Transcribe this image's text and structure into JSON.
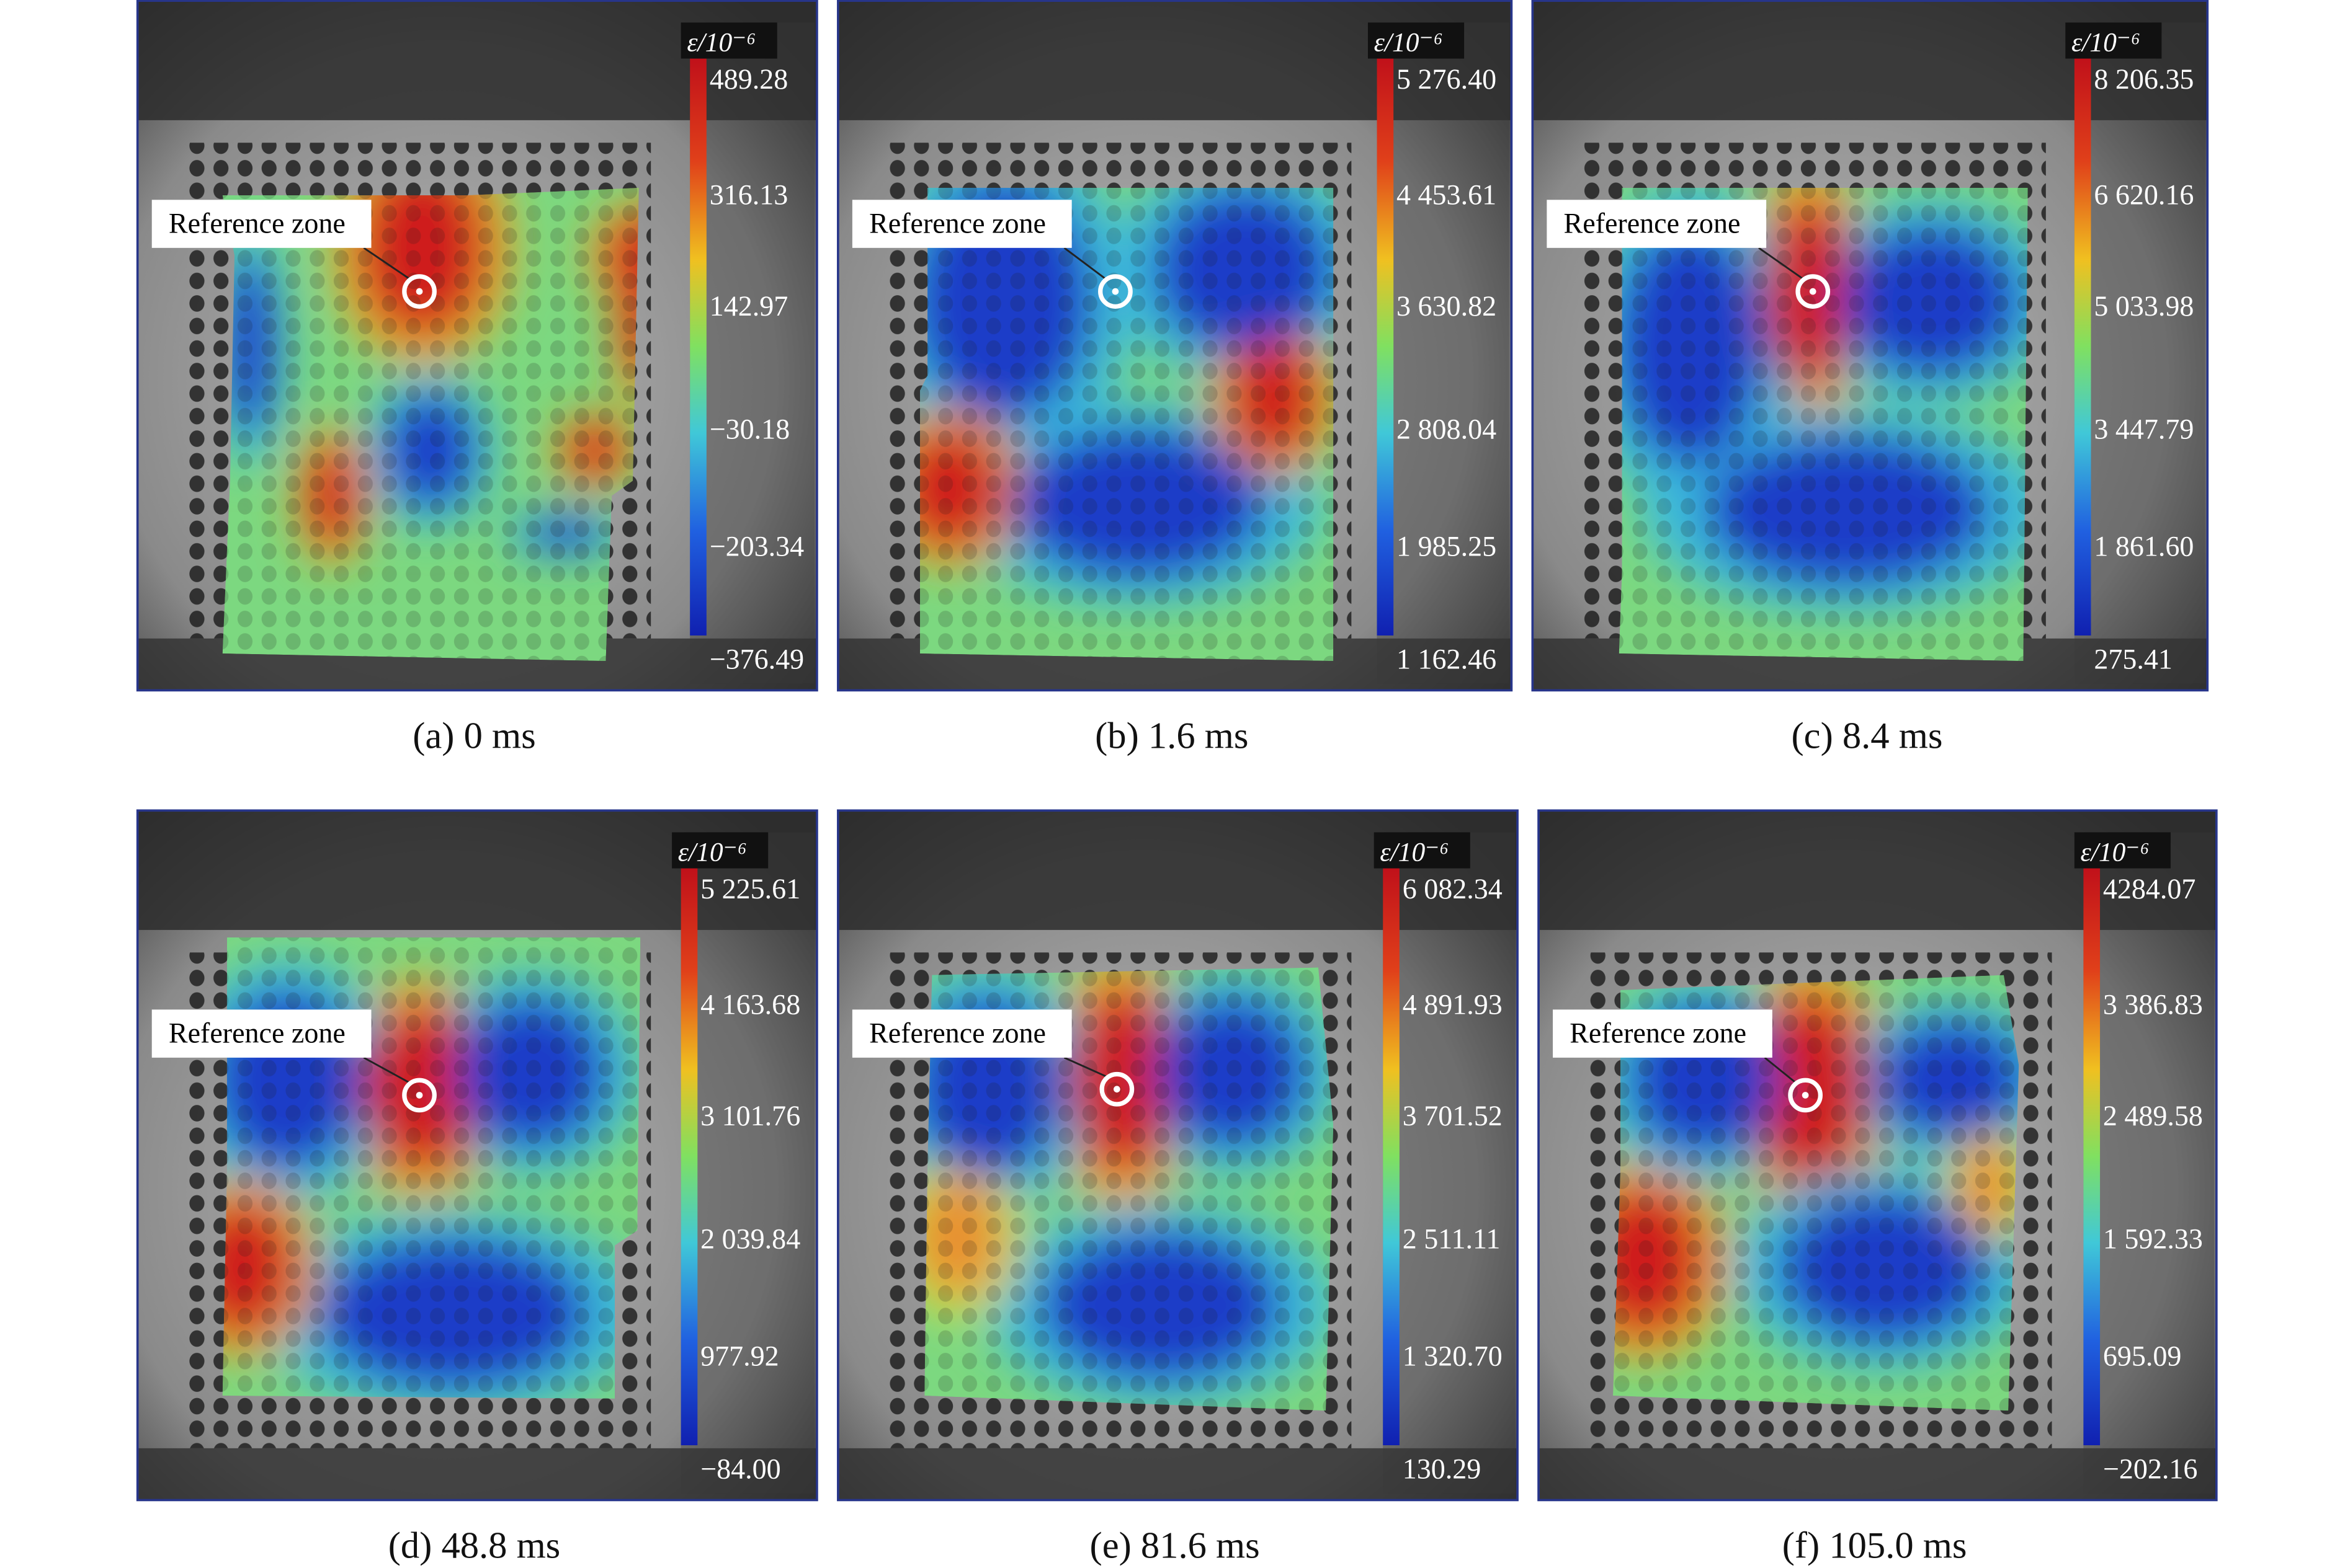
{
  "figure": {
    "panels": [
      {
        "caption": "(a) 0 ms",
        "reference_label": "Reference zone",
        "colorbar_unit": "ε/10⁻⁶",
        "colorbar_labels": [
          "489.28",
          "316.13",
          "142.97",
          "−30.18",
          "−203.34",
          "−376.49"
        ]
      },
      {
        "caption": "(b) 1.6 ms",
        "reference_label": "Reference zone",
        "colorbar_unit": "ε/10⁻⁶",
        "colorbar_labels": [
          "5 276.40",
          "4 453.61",
          "3 630.82",
          "2 808.04",
          "1 985.25",
          "1 162.46"
        ]
      },
      {
        "caption": "(c) 8.4 ms",
        "reference_label": "Reference zone",
        "colorbar_unit": "ε/10⁻⁶",
        "colorbar_labels": [
          "8 206.35",
          "6 620.16",
          "5 033.98",
          "3 447.79",
          "1 861.60",
          "275.41"
        ]
      },
      {
        "caption": "(d) 48.8 ms",
        "reference_label": "Reference zone",
        "colorbar_unit": "ε/10⁻⁶",
        "colorbar_labels": [
          "5 225.61",
          "4 163.68",
          "3 101.76",
          "2 039.84",
          "977.92",
          "−84.00"
        ]
      },
      {
        "caption": "(e) 81.6 ms",
        "reference_label": "Reference zone",
        "colorbar_unit": "ε/10⁻⁶",
        "colorbar_labels": [
          "6 082.34",
          "4 891.93",
          "3 701.52",
          "2 511.11",
          "1 320.70",
          "130.29"
        ]
      },
      {
        "caption": "(f) 105.0 ms",
        "reference_label": "Reference zone",
        "colorbar_unit": "ε/10⁻⁶",
        "colorbar_labels": [
          "4284.07",
          "3 386.83",
          "2 489.58",
          "1 592.33",
          "695.09",
          "−202.16"
        ]
      }
    ]
  }
}
